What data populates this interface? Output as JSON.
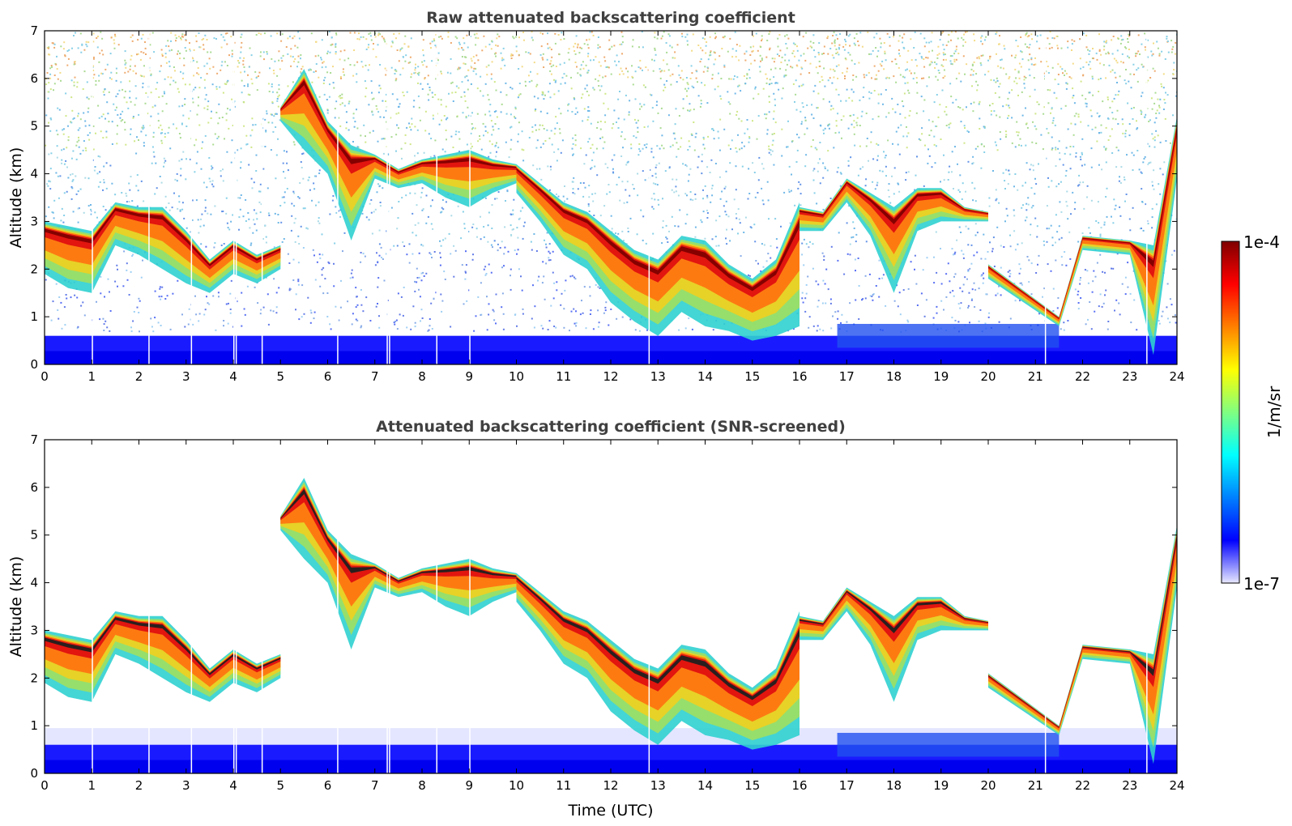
{
  "chart_data": [
    {
      "type": "heatmap",
      "title": "Raw attenuated backscattering coefficient",
      "xlabel": "",
      "ylabel": "Altitude (km)",
      "xlim": [
        0,
        24
      ],
      "ylim": [
        0,
        7
      ],
      "xticks": [
        "0",
        "1",
        "2",
        "3",
        "4",
        "5",
        "6",
        "7",
        "8",
        "9",
        "10",
        "11",
        "12",
        "13",
        "14",
        "15",
        "16",
        "17",
        "18",
        "19",
        "20",
        "21",
        "22",
        "23",
        "24"
      ],
      "yticks": [
        "0",
        "1",
        "2",
        "3",
        "4",
        "5",
        "6",
        "7"
      ],
      "colorscale": "jet",
      "noise": "high",
      "missing_profiles_x": [
        1.0,
        2.2,
        3.1,
        4.0,
        4.05,
        4.6,
        6.2,
        7.25,
        7.3,
        8.3,
        9.0,
        12.8,
        21.2,
        23.35
      ],
      "cloud_layers": [
        {
          "x": [
            0.0,
            0.5,
            1.0,
            1.5,
            2.0,
            2.5,
            3.0,
            3.5,
            4.0,
            4.5,
            5.0
          ],
          "top_km": [
            3.0,
            2.9,
            2.8,
            3.4,
            3.3,
            3.3,
            2.8,
            2.2,
            2.6,
            2.3,
            2.5
          ],
          "base_km": [
            1.9,
            1.6,
            1.5,
            2.5,
            2.3,
            2.0,
            1.7,
            1.5,
            1.9,
            1.7,
            2.0
          ]
        },
        {
          "x": [
            5.0,
            5.5,
            6.0,
            6.5,
            7.0,
            7.5,
            8.0,
            8.5,
            9.0,
            9.5,
            10.0
          ],
          "top_km": [
            5.4,
            6.2,
            5.1,
            4.6,
            4.4,
            4.1,
            4.3,
            4.4,
            4.5,
            4.3,
            4.2
          ],
          "base_km": [
            5.1,
            4.5,
            4.0,
            2.6,
            3.9,
            3.7,
            3.8,
            3.5,
            3.3,
            3.6,
            3.8
          ]
        },
        {
          "x": [
            10.0,
            10.5,
            11.0,
            11.5,
            12.0,
            12.5,
            13.0,
            13.5,
            14.0,
            14.5,
            15.0,
            15.5,
            16.0
          ],
          "top_km": [
            4.2,
            3.8,
            3.4,
            3.2,
            2.8,
            2.4,
            2.2,
            2.7,
            2.6,
            2.1,
            1.8,
            2.2,
            3.4
          ],
          "base_km": [
            3.6,
            3.0,
            2.3,
            2.0,
            1.3,
            0.9,
            0.6,
            1.1,
            0.8,
            0.7,
            0.5,
            0.6,
            0.8
          ]
        },
        {
          "x": [
            16.0,
            16.5,
            17.0,
            17.5,
            18.0,
            18.5,
            19.0,
            19.5,
            20.0
          ],
          "top_km": [
            3.3,
            3.2,
            3.9,
            3.6,
            3.3,
            3.7,
            3.7,
            3.3,
            3.2
          ],
          "base_km": [
            2.8,
            2.8,
            3.4,
            2.7,
            1.5,
            2.8,
            3.0,
            3.0,
            3.0
          ]
        },
        {
          "x": [
            20.0,
            21.5,
            22.0,
            23.0,
            23.5,
            24.0
          ],
          "top_km": [
            2.1,
            1.0,
            2.7,
            2.6,
            2.5,
            5.2
          ],
          "base_km": [
            1.8,
            0.8,
            2.4,
            2.3,
            0.2,
            3.9
          ]
        }
      ],
      "boundary_layer_top_km": 0.6
    },
    {
      "type": "heatmap",
      "title": "Attenuated backscattering coefficient (SNR-screened)",
      "xlabel": "Time (UTC)",
      "ylabel": "Altitude (km)",
      "xlim": [
        0,
        24
      ],
      "ylim": [
        0,
        7
      ],
      "xticks": [
        "0",
        "1",
        "2",
        "3",
        "4",
        "5",
        "6",
        "7",
        "8",
        "9",
        "10",
        "11",
        "12",
        "13",
        "14",
        "15",
        "16",
        "17",
        "18",
        "19",
        "20",
        "21",
        "22",
        "23",
        "24"
      ],
      "yticks": [
        "0",
        "1",
        "2",
        "3",
        "4",
        "5",
        "6",
        "7"
      ],
      "colorscale": "jet",
      "noise": "screened",
      "missing_profiles_x": [
        1.0,
        2.2,
        3.1,
        4.0,
        4.05,
        4.6,
        6.2,
        7.25,
        7.3,
        8.3,
        9.0,
        12.8,
        21.2,
        23.35
      ],
      "cloud_layers": [
        {
          "x": [
            0.0,
            0.5,
            1.0,
            1.5,
            2.0,
            2.5,
            3.0,
            3.5,
            4.0,
            4.5,
            5.0
          ],
          "top_km": [
            3.0,
            2.9,
            2.8,
            3.4,
            3.3,
            3.3,
            2.8,
            2.2,
            2.6,
            2.3,
            2.5
          ],
          "base_km": [
            1.9,
            1.6,
            1.5,
            2.5,
            2.3,
            2.0,
            1.7,
            1.5,
            1.9,
            1.7,
            2.0
          ]
        },
        {
          "x": [
            5.0,
            5.5,
            6.0,
            6.5,
            7.0,
            7.5,
            8.0,
            8.5,
            9.0,
            9.5,
            10.0
          ],
          "top_km": [
            5.4,
            6.2,
            5.1,
            4.6,
            4.4,
            4.1,
            4.3,
            4.4,
            4.5,
            4.3,
            4.2
          ],
          "base_km": [
            5.1,
            4.5,
            4.0,
            2.6,
            3.9,
            3.7,
            3.8,
            3.5,
            3.3,
            3.6,
            3.8
          ]
        },
        {
          "x": [
            10.0,
            10.5,
            11.0,
            11.5,
            12.0,
            12.5,
            13.0,
            13.5,
            14.0,
            14.5,
            15.0,
            15.5,
            16.0
          ],
          "top_km": [
            4.2,
            3.8,
            3.4,
            3.2,
            2.8,
            2.4,
            2.2,
            2.7,
            2.6,
            2.1,
            1.8,
            2.2,
            3.4
          ],
          "base_km": [
            3.6,
            3.0,
            2.3,
            2.0,
            1.3,
            0.9,
            0.6,
            1.1,
            0.8,
            0.7,
            0.5,
            0.6,
            0.8
          ]
        },
        {
          "x": [
            16.0,
            16.5,
            17.0,
            17.5,
            18.0,
            18.5,
            19.0,
            19.5,
            20.0
          ],
          "top_km": [
            3.3,
            3.2,
            3.9,
            3.6,
            3.3,
            3.7,
            3.7,
            3.3,
            3.2
          ],
          "base_km": [
            2.8,
            2.8,
            3.4,
            2.7,
            1.5,
            2.8,
            3.0,
            3.0,
            3.0
          ]
        },
        {
          "x": [
            20.0,
            21.5,
            22.0,
            23.0,
            23.5,
            24.0
          ],
          "top_km": [
            2.1,
            1.0,
            2.7,
            2.6,
            2.5,
            5.2
          ],
          "base_km": [
            1.8,
            0.8,
            2.4,
            2.3,
            0.2,
            3.9
          ]
        }
      ],
      "boundary_layer_top_km": 0.6
    }
  ],
  "colorbar": {
    "top_label": "1e-4",
    "bottom_label": "1e-7",
    "unit_label": "1/m/sr",
    "colors": [
      "#e8e8ff",
      "#0000ff",
      "#0080ff",
      "#00ffff",
      "#80ff80",
      "#ffff00",
      "#ff8000",
      "#ff0000",
      "#800000"
    ]
  }
}
